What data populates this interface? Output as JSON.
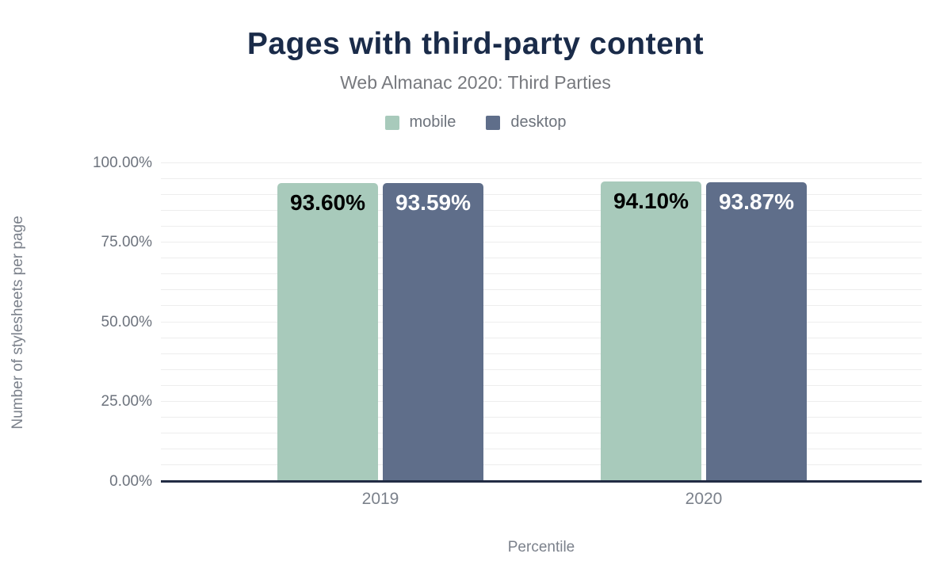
{
  "header": {
    "title": "Pages with third-party content",
    "subtitle": "Web Almanac 2020: Third Parties"
  },
  "legend": {
    "items": [
      {
        "label": "mobile",
        "color": "#a8cabb"
      },
      {
        "label": "desktop",
        "color": "#5f6e8a"
      }
    ]
  },
  "axes": {
    "y_title": "Number of stylesheets per page",
    "x_title": "Percentile",
    "y_tick_labels": [
      "100.00%",
      "75.00%",
      "50.00%",
      "25.00%",
      "0.00%"
    ],
    "x_tick_labels": [
      "2019",
      "2020"
    ]
  },
  "chart_data": {
    "type": "bar",
    "title": "Pages with third-party content",
    "subtitle": "Web Almanac 2020: Third Parties",
    "categories": [
      "2019",
      "2020"
    ],
    "series": [
      {
        "name": "mobile",
        "color": "#a8cabb",
        "label_color": "#000000",
        "values": [
          93.6,
          94.1
        ],
        "labels": [
          "93.60%",
          "94.10%"
        ]
      },
      {
        "name": "desktop",
        "color": "#5f6e8a",
        "label_color": "#ffffff",
        "values": [
          93.59,
          93.87
        ],
        "labels": [
          "93.59%",
          "93.87%"
        ]
      }
    ],
    "xlabel": "Percentile",
    "ylabel": "Number of stylesheets per page",
    "ylim": [
      0,
      100
    ],
    "y_ticks": [
      {
        "value": 100,
        "label": "100.00%"
      },
      {
        "value": 75,
        "label": "75.00%"
      },
      {
        "value": 50,
        "label": "50.00%"
      },
      {
        "value": 25,
        "label": "25.00%"
      },
      {
        "value": 0,
        "label": "0.00%"
      }
    ],
    "grid": {
      "on": true,
      "minor_step": 5,
      "color": "#ededed"
    },
    "legend_position": "top"
  },
  "colors": {
    "title_text": "#1a2b49",
    "axis_line": "#222c44",
    "subtitle_text": "#77797e",
    "tick_text": "#6d737d",
    "axis_title_text": "#7b818b"
  }
}
